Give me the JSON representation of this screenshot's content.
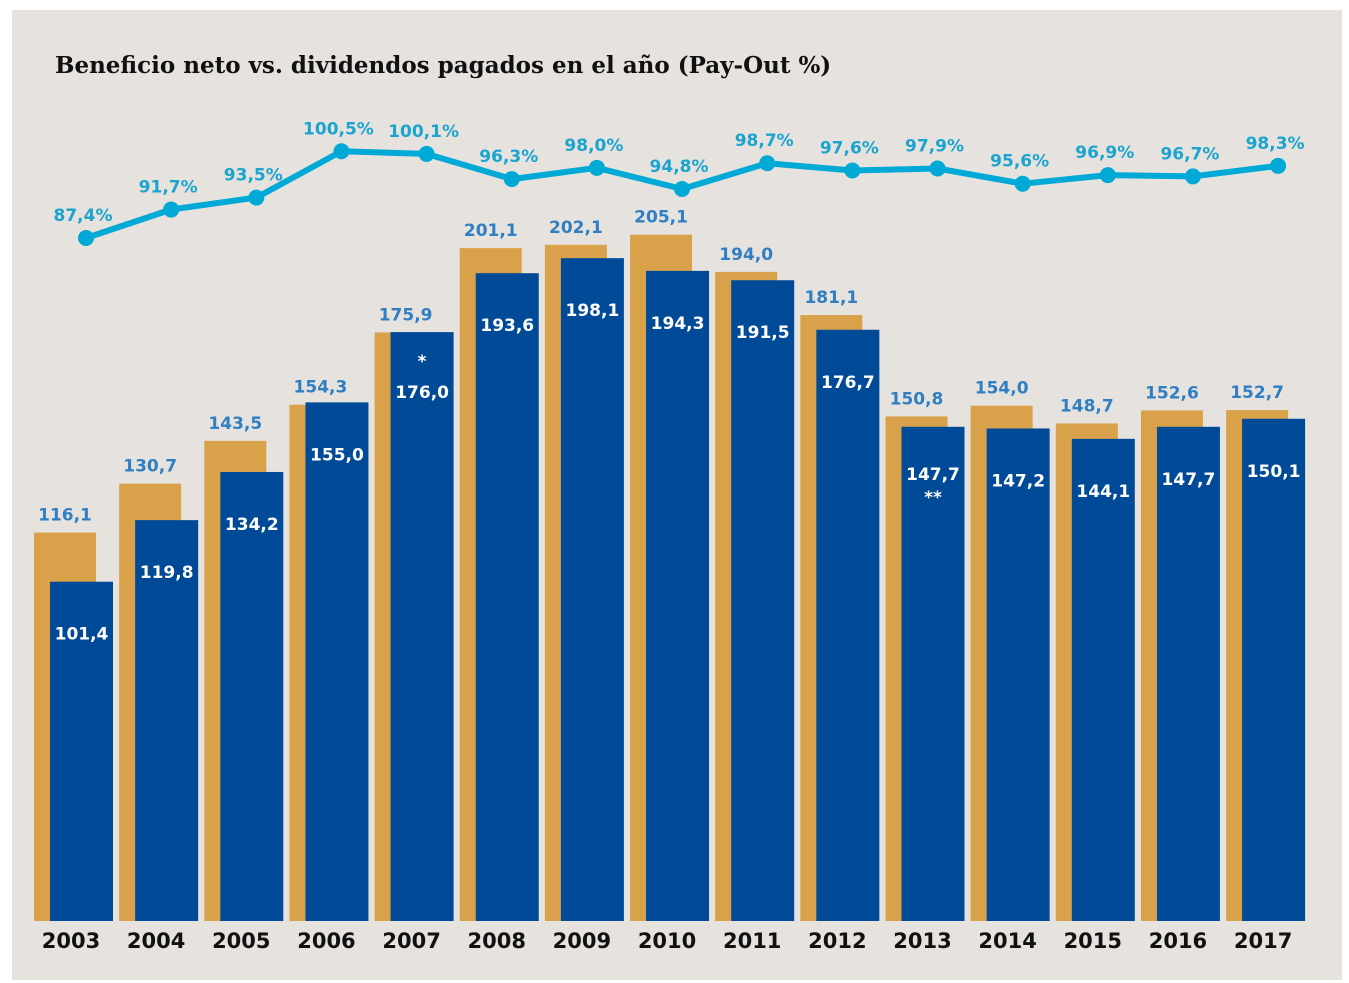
{
  "title": "Beneficio neto vs. dividendos pagados en el año (Pay-Out %)",
  "colors": {
    "background": "#e6e2de",
    "beneficio_bar": "#d9a24a",
    "dividendo_bar": "#004a97",
    "payout_line": "#00a9d6",
    "beneficio_label": "#2f7fc2",
    "payout_label": "#1aa4cf",
    "axis_label": "#111111"
  },
  "chart_data": {
    "type": "bar",
    "categories": [
      "2003",
      "2004",
      "2005",
      "2006",
      "2007",
      "2008",
      "2009",
      "2010",
      "2011",
      "2012",
      "2013",
      "2014",
      "2015",
      "2016",
      "2017"
    ],
    "series": [
      {
        "key": "beneficio",
        "values": [
          116.1,
          130.7,
          143.5,
          154.3,
          175.9,
          201.1,
          202.1,
          205.1,
          194.0,
          181.1,
          150.8,
          154.0,
          148.7,
          152.6,
          152.7
        ],
        "labels": [
          "116,1",
          "130,7",
          "143,5",
          "154,3",
          "175,9",
          "201,1",
          "202,1",
          "205,1",
          "194,0",
          "181,1",
          "150,8",
          "154,0",
          "148,7",
          "152,6",
          "152,7"
        ]
      },
      {
        "key": "dividendos",
        "values": [
          101.4,
          119.8,
          134.2,
          155.0,
          176.0,
          193.6,
          198.1,
          194.3,
          191.5,
          176.7,
          147.7,
          147.2,
          144.1,
          147.7,
          150.1
        ],
        "labels": [
          "101,4",
          "119,8",
          "134,2",
          "155,0",
          "176,0",
          "193,6",
          "198,1",
          "194,3",
          "191,5",
          "176,7",
          "147,7",
          "147,2",
          "144,1",
          "147,7",
          "150,1"
        ],
        "notes": [
          "",
          "",
          "",
          "",
          "*",
          "",
          "",
          "",
          "",
          "",
          "**",
          "",
          "",
          "",
          ""
        ]
      },
      {
        "key": "payout",
        "type": "line",
        "values": [
          87.4,
          91.7,
          93.5,
          100.5,
          100.1,
          96.3,
          98.0,
          94.8,
          98.7,
          97.6,
          97.9,
          95.6,
          96.9,
          96.7,
          98.3
        ],
        "labels": [
          "87,4%",
          "91,7%",
          "93,5%",
          "100,5%",
          "100,1%",
          "96,3%",
          "98,0%",
          "94,8%",
          "98,7%",
          "97,6%",
          "97,9%",
          "95,6%",
          "96,9%",
          "96,7%",
          "98,3%"
        ]
      }
    ],
    "legend": "none",
    "grid": false,
    "xlabel": "",
    "ylabel": ""
  }
}
